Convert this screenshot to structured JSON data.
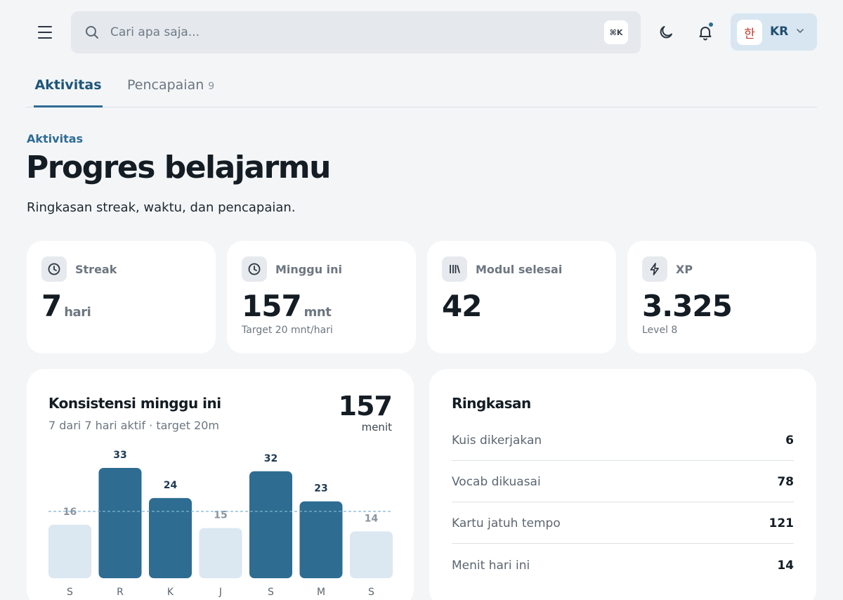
{
  "header": {
    "search": {
      "placeholder": "Cari apa saja...",
      "shortcut": "⌘K"
    },
    "language": {
      "flag": "한",
      "code": "KR"
    },
    "notification_dot_color": "#2f6b93"
  },
  "tabs": [
    {
      "label": "Aktivitas",
      "active": true
    },
    {
      "label": "Pencapaian",
      "count": "9",
      "active": false
    }
  ],
  "page": {
    "eyebrow": "Aktivitas",
    "title": "Progres belajarmu",
    "subtitle": "Ringkasan streak, waktu, dan pencapaian."
  },
  "stats": [
    {
      "icon": "clock-icon",
      "label": "Streak",
      "value": "7",
      "unit": "hari",
      "sub": ""
    },
    {
      "icon": "clock-icon",
      "label": "Minggu ini",
      "value": "157",
      "unit": "mnt",
      "sub": "Target 20 mnt/hari"
    },
    {
      "icon": "library-icon",
      "label": "Modul selesai",
      "value": "42",
      "unit": "",
      "sub": ""
    },
    {
      "icon": "bolt-icon",
      "label": "XP",
      "value": "3.325",
      "unit": "",
      "sub": "Level 8"
    }
  ],
  "consistency": {
    "title": "Konsistensi minggu ini",
    "subtitle": "7 dari 7 hari aktif · target 20m",
    "total": "157",
    "total_unit": "menit"
  },
  "chart_data": {
    "type": "bar",
    "categories": [
      "S",
      "R",
      "K",
      "J",
      "S",
      "M",
      "S"
    ],
    "values": [
      16,
      33,
      24,
      15,
      32,
      23,
      14
    ],
    "target": 20,
    "colors": {
      "above_target": "#2e6c91",
      "below_target": "#dbe7f1",
      "label_above": "#1f3a52",
      "label_below": "#8a949e",
      "target_line": "#7fb3d3"
    }
  },
  "summary": {
    "title": "Ringkasan",
    "rows": [
      {
        "label": "Kuis dikerjakan",
        "value": "6"
      },
      {
        "label": "Vocab dikuasai",
        "value": "78"
      },
      {
        "label": "Kartu jatuh tempo",
        "value": "121"
      },
      {
        "label": "Menit hari ini",
        "value": "14"
      }
    ]
  }
}
